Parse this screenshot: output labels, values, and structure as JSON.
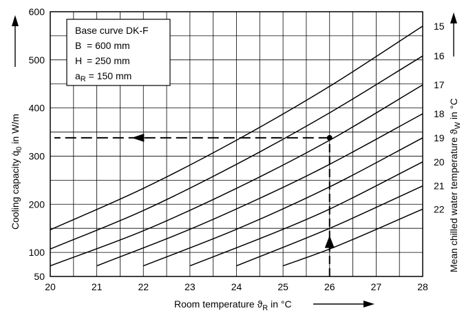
{
  "chart_data": {
    "type": "line",
    "title": "",
    "xlabel": "Room temperature ϑ",
    "xlabel_sub": "R",
    "xlabel_unit": " in °C",
    "ylabel": "Cooling capacity q̇",
    "ylabel_sub": "0",
    "ylabel_unit": " in W/m",
    "y2label": "Mean chilled water temperature ϑ",
    "y2label_sub": "W",
    "y2label_unit": " in °C",
    "xlim": [
      20,
      28
    ],
    "ylim": [
      50,
      600
    ],
    "x_ticks": [
      "20",
      "21",
      "22",
      "23",
      "24",
      "25",
      "26",
      "27",
      "28"
    ],
    "y_ticks": [
      "50",
      "100",
      "200",
      "300",
      "400",
      "500",
      "600"
    ],
    "grid": true,
    "legend_box": {
      "title": "Base curve DK-F",
      "rows": [
        {
          "label": "B",
          "sub": "",
          "value": "= 600 mm"
        },
        {
          "label": "H",
          "sub": "",
          "value": "= 250 mm"
        },
        {
          "label": "a",
          "sub": "R",
          "value": " = 150 mm"
        }
      ]
    },
    "series": [
      {
        "name": "15",
        "points": [
          [
            20,
            147
          ],
          [
            22,
            233
          ],
          [
            24,
            333
          ],
          [
            26,
            445
          ],
          [
            28,
            570
          ]
        ]
      },
      {
        "name": "16",
        "points": [
          [
            20,
            107
          ],
          [
            22,
            187
          ],
          [
            24,
            283
          ],
          [
            26,
            390
          ],
          [
            28,
            508
          ]
        ]
      },
      {
        "name": "17",
        "points": [
          [
            20,
            72
          ],
          [
            22,
            145
          ],
          [
            24,
            233
          ],
          [
            26,
            333
          ],
          [
            28,
            448
          ]
        ]
      },
      {
        "name": "18",
        "points": [
          [
            21,
            72
          ],
          [
            23,
            148
          ],
          [
            25,
            235
          ],
          [
            26,
            283
          ],
          [
            28,
            388
          ]
        ]
      },
      {
        "name": "19",
        "points": [
          [
            22,
            72
          ],
          [
            24,
            148
          ],
          [
            26,
            236
          ],
          [
            28,
            338
          ]
        ]
      },
      {
        "name": "20",
        "points": [
          [
            23,
            72
          ],
          [
            25,
            148
          ],
          [
            26,
            190
          ],
          [
            28,
            288
          ]
        ]
      },
      {
        "name": "21",
        "points": [
          [
            24,
            72
          ],
          [
            26,
            150
          ],
          [
            28,
            238
          ]
        ]
      },
      {
        "name": "22",
        "points": [
          [
            25,
            72
          ],
          [
            26,
            107
          ],
          [
            28,
            190
          ]
        ]
      }
    ],
    "example_point": {
      "x": 26,
      "y": 338
    },
    "example_arrow_y_start": 115
  }
}
